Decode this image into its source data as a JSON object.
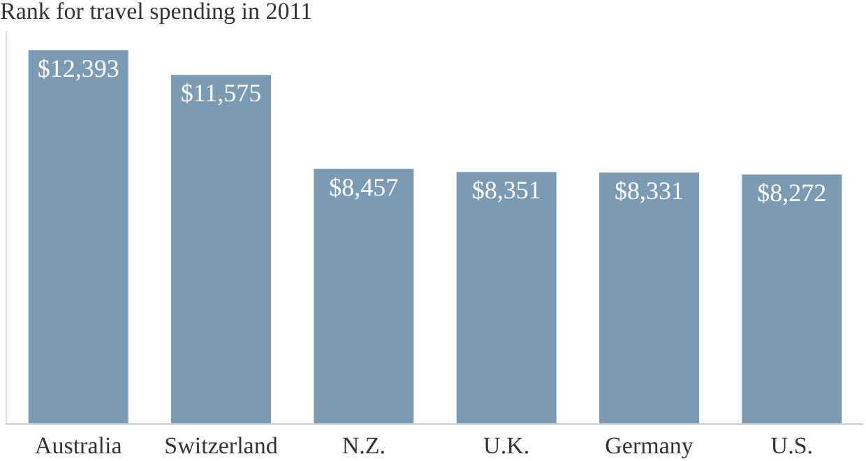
{
  "chart_data": {
    "type": "bar",
    "title": "Rank for travel spending in 2011",
    "categories": [
      "Australia",
      "Switzerland",
      "N.Z.",
      "U.K.",
      "Germany",
      "U.S."
    ],
    "values": [
      12393,
      11575,
      8457,
      8351,
      8331,
      8272
    ],
    "value_labels": [
      "$12,393",
      "$11,575",
      "$8,457",
      "$8,351",
      "$8,331",
      "$8,272"
    ],
    "color": "#7b9bb4",
    "tick_labels": "x"
  }
}
